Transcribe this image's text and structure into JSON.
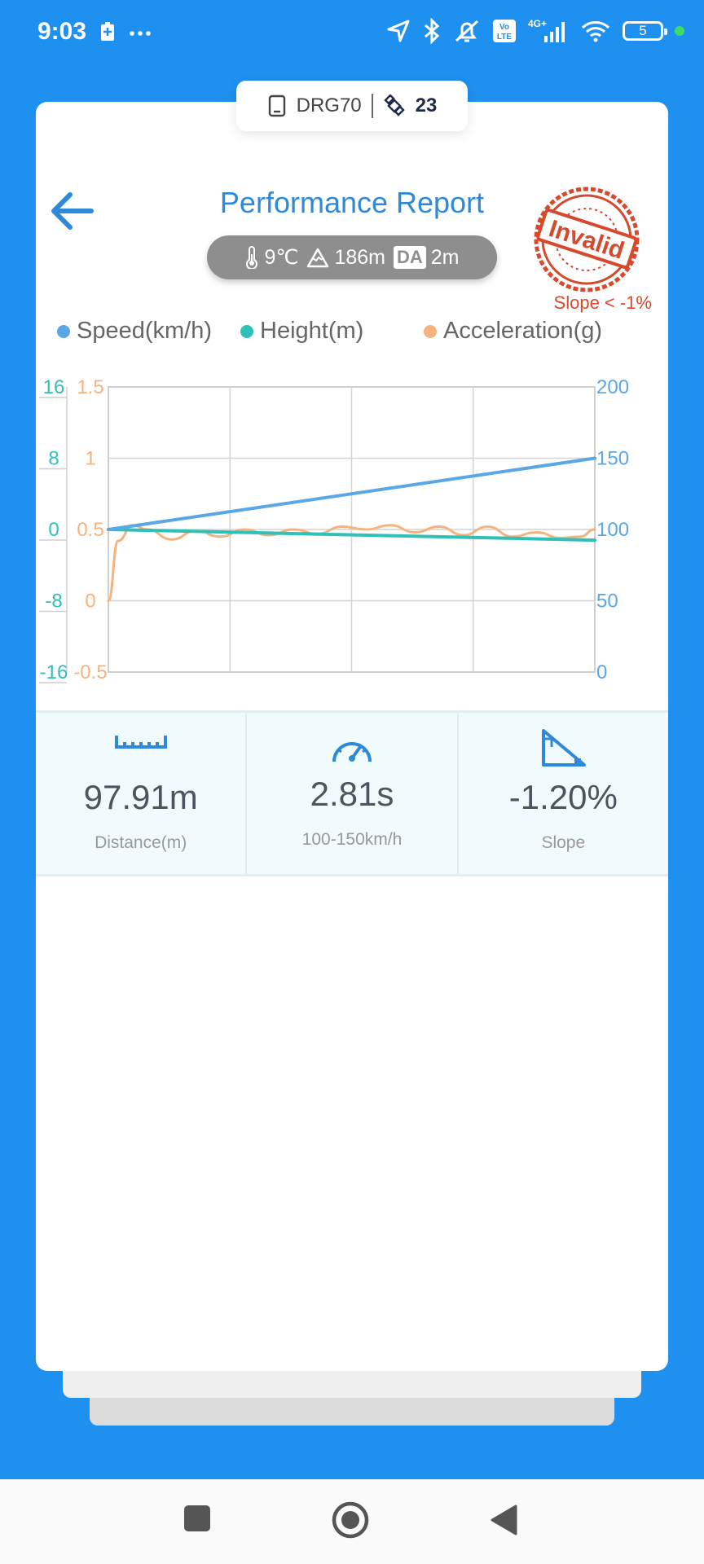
{
  "status_bar": {
    "time": "9:03",
    "left_icons": [
      "battery-saver-icon",
      "more-icon"
    ],
    "right_icons": [
      "location-icon",
      "bluetooth-icon",
      "mute-icon",
      "volte-icon",
      "signal-4g-icon",
      "wifi-icon"
    ],
    "network_label": "4G+",
    "volte_label": "Vo LTE",
    "battery_level": "5"
  },
  "device": {
    "name": "DRG70",
    "satellites": "23"
  },
  "header": {
    "title": "Performance Report",
    "temperature": "9℃",
    "altitude": "186m",
    "da_label": "DA",
    "density_altitude": "2m"
  },
  "stamp": {
    "text": "Invalid",
    "note": "Slope < -1%",
    "color": "#d6492c"
  },
  "legend": [
    {
      "name": "Speed(km/h)",
      "color": "#5aa7e6"
    },
    {
      "name": "Height(m)",
      "color": "#2fc0b8"
    },
    {
      "name": "Acceleration(g)",
      "color": "#f6b37e"
    }
  ],
  "chart_data": {
    "type": "line",
    "left_axis_height": {
      "ticks": [
        "16",
        "8",
        "0",
        "-8",
        "-16"
      ],
      "ylim": [
        -16,
        16
      ],
      "color": "#2fc0b8"
    },
    "left_axis_accel": {
      "ticks": [
        "1.5",
        "1",
        "0.5",
        "0",
        "-0.5"
      ],
      "ylim": [
        -0.5,
        1.5
      ],
      "color": "#f6b37e"
    },
    "right_axis_speed": {
      "ticks": [
        "200",
        "150",
        "100",
        "50",
        "0"
      ],
      "ylim": [
        0,
        200
      ],
      "color": "#5aa7e6"
    },
    "grid": true,
    "series": [
      {
        "name": "Speed(km/h)",
        "axis": "right",
        "t": [
          0,
          1
        ],
        "values": [
          100,
          150
        ]
      },
      {
        "name": "Height(m)",
        "axis": "left",
        "t": [
          0,
          1
        ],
        "values": [
          0,
          -1.2
        ]
      },
      {
        "name": "Acceleration(g)",
        "axis": "accel",
        "t": [
          0,
          0.02,
          0.05,
          0.08,
          0.13,
          0.18,
          0.23,
          0.28,
          0.33,
          0.38,
          0.43,
          0.48,
          0.53,
          0.58,
          0.63,
          0.68,
          0.73,
          0.78,
          0.83,
          0.88,
          0.93,
          0.97,
          1.0
        ],
        "values": [
          0,
          0.42,
          0.53,
          0.5,
          0.43,
          0.49,
          0.45,
          0.5,
          0.46,
          0.5,
          0.47,
          0.52,
          0.5,
          0.53,
          0.48,
          0.52,
          0.46,
          0.52,
          0.45,
          0.48,
          0.44,
          0.45,
          0.5
        ]
      }
    ]
  },
  "stats": [
    {
      "icon": "ruler-icon",
      "value": "97.91m",
      "label": "Distance(m)"
    },
    {
      "icon": "speedometer-icon",
      "value": "2.81s",
      "label": "100-150km/h"
    },
    {
      "icon": "slope-triangle-icon",
      "value": "-1.20%",
      "label": "Slope"
    }
  ],
  "nav": [
    "recents-button",
    "home-button",
    "back-button"
  ]
}
